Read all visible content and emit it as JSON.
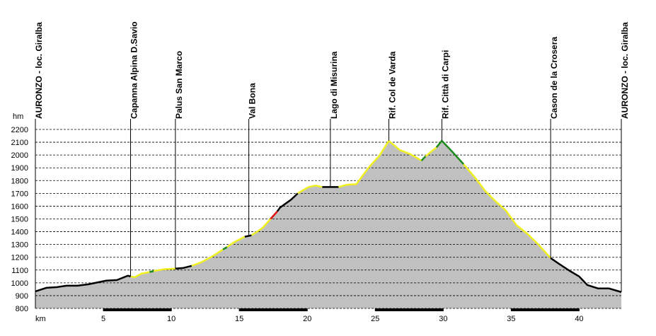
{
  "chart_data": {
    "type": "line",
    "x_label": "km",
    "y_label": "hm",
    "xlim": [
      0,
      43.1
    ],
    "ylim": [
      800,
      2200
    ],
    "xticks": [
      5,
      10,
      15,
      20,
      25,
      30,
      35,
      40
    ],
    "yticks": [
      800,
      900,
      1000,
      1100,
      1200,
      1300,
      1400,
      1500,
      1600,
      1700,
      1800,
      1900,
      2000,
      2100,
      2200
    ],
    "grid": true,
    "fill_color": "#c0c0c0",
    "waypoints": [
      {
        "label": "AURONZO - loc. Giralba",
        "x": 0
      },
      {
        "label": "Capanna Alpina D.Savio",
        "x": 7.0
      },
      {
        "label": "Palus San Marco",
        "x": 10.3
      },
      {
        "label": "Val Bona",
        "x": 15.7
      },
      {
        "label": "Lago di Misurina",
        "x": 21.7
      },
      {
        "label": "Rif. Col de Varda",
        "x": 26.0
      },
      {
        "label": "Rif. Città di Carpi",
        "x": 29.9
      },
      {
        "label": "Cason de la Crosera",
        "x": 37.9
      },
      {
        "label": "AURONZO - loc. Giralba",
        "x": 43.1
      }
    ],
    "series": [
      {
        "color": "#000000",
        "x": [
          0,
          0.8,
          1.6,
          2.3,
          3.1,
          3.9,
          4.7,
          5.2,
          6.0,
          6.8,
          7.0
        ],
        "values": [
          933,
          961,
          967,
          978,
          978,
          989,
          1006,
          1017,
          1022,
          1056,
          1050
        ]
      },
      {
        "color": "#f0f020",
        "x": [
          7.0,
          7.3,
          7.8,
          8.4
        ],
        "values": [
          1050,
          1044,
          1072,
          1085
        ]
      },
      {
        "color": "#1a8a1a",
        "x": [
          8.4,
          8.7
        ],
        "values": [
          1085,
          1092
        ]
      },
      {
        "color": "#f0f020",
        "x": [
          8.7,
          9.4,
          10.3
        ],
        "values": [
          1092,
          1106,
          1111
        ]
      },
      {
        "color": "#000000",
        "x": [
          10.3,
          10.9,
          11.5
        ],
        "values": [
          1111,
          1117,
          1133
        ]
      },
      {
        "color": "#f0f020",
        "x": [
          11.5,
          12.2,
          13.0,
          13.8
        ],
        "values": [
          1133,
          1161,
          1206,
          1261
        ]
      },
      {
        "color": "#1a8a1a",
        "x": [
          13.8,
          14.1
        ],
        "values": [
          1261,
          1280
        ]
      },
      {
        "color": "#f0f020",
        "x": [
          14.1,
          14.6,
          15.4
        ],
        "values": [
          1280,
          1317,
          1361
        ]
      },
      {
        "color": "#000000",
        "x": [
          15.4,
          15.9
        ],
        "values": [
          1361,
          1372
        ]
      },
      {
        "color": "#f0f020",
        "x": [
          15.9,
          16.7,
          17.3
        ],
        "values": [
          1372,
          1428,
          1500
        ]
      },
      {
        "color": "#e01010",
        "x": [
          17.3,
          17.8
        ],
        "values": [
          1500,
          1560
        ]
      },
      {
        "color": "#000000",
        "x": [
          17.8,
          18.0,
          18.8,
          19.3
        ],
        "values": [
          1560,
          1589,
          1650,
          1700
        ]
      },
      {
        "color": "#f0f020",
        "x": [
          19.3,
          20.1,
          20.6,
          21.1
        ],
        "values": [
          1700,
          1750,
          1761,
          1750
        ]
      },
      {
        "color": "#000000",
        "x": [
          21.1,
          22.3
        ],
        "values": [
          1750,
          1750
        ]
      },
      {
        "color": "#f0f020",
        "x": [
          22.3,
          22.9,
          23.6,
          24.5,
          25.3,
          26.0,
          26.8,
          27.6,
          28.4
        ],
        "values": [
          1750,
          1767,
          1772,
          1900,
          1994,
          2111,
          2039,
          2006,
          1956
        ]
      },
      {
        "color": "#1a8a1a",
        "x": [
          28.4,
          28.7
        ],
        "values": [
          1956,
          1990
        ]
      },
      {
        "color": "#f0f020",
        "x": [
          28.7,
          29.5
        ],
        "values": [
          1990,
          2060
        ]
      },
      {
        "color": "#1a8a1a",
        "x": [
          29.5,
          29.9,
          30.7,
          31.5
        ],
        "values": [
          2060,
          2111,
          2022,
          1928
        ]
      },
      {
        "color": "#f0f020",
        "x": [
          31.5,
          32.3,
          33.1,
          33.9,
          34.6,
          35.4,
          36.2,
          37.0,
          37.9
        ],
        "values": [
          1928,
          1828,
          1717,
          1633,
          1567,
          1450,
          1383,
          1300,
          1194
        ]
      },
      {
        "color": "#000000",
        "x": [
          37.9,
          38.5,
          39.3,
          40.0,
          40.6,
          41.4,
          42.2,
          43.1
        ],
        "values": [
          1194,
          1150,
          1094,
          1050,
          983,
          956,
          956,
          928
        ]
      }
    ]
  }
}
